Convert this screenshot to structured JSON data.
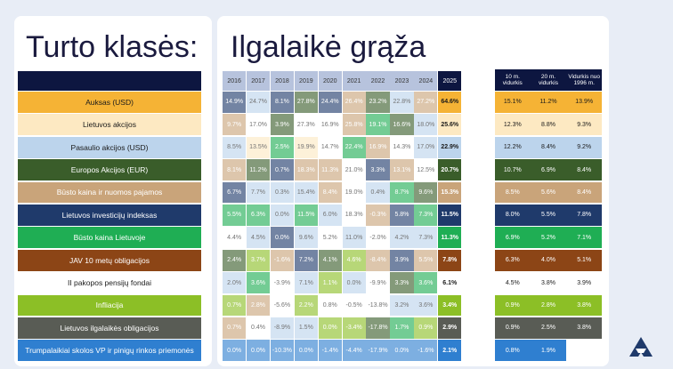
{
  "titles": {
    "left": "Turto klasės:",
    "right": "Ilgalaikė grąža"
  },
  "chart_data": {
    "type": "table",
    "years": [
      "2016",
      "2017",
      "2018",
      "2019",
      "2020",
      "2021",
      "2022",
      "2023",
      "2024",
      "2025"
    ],
    "summary_headers": [
      "10 m. vidurkis",
      "20 m. vidurkis",
      "Vidurkis nuo 1996 m."
    ],
    "assets": [
      {
        "name": "Auksas (USD)",
        "color": "#f5b335",
        "text": "#1a1a1a",
        "summary": [
          "15.1%",
          "11.2%",
          "13.9%"
        ]
      },
      {
        "name": "Lietuvos akcijos",
        "color": "#fde9c2",
        "text": "#1a1a1a",
        "summary": [
          "12.3%",
          "8.8%",
          "9.3%"
        ]
      },
      {
        "name": "Pasaulio akcijos (USD)",
        "color": "#bcd4ec",
        "text": "#1a1a1a",
        "summary": [
          "12.2%",
          "8.4%",
          "9.2%"
        ]
      },
      {
        "name": "Europos Akcijos (EUR)",
        "color": "#3a5d2a",
        "text": "#ffffff",
        "summary": [
          "10.7%",
          "6.9%",
          "8.4%"
        ]
      },
      {
        "name": "Būsto kaina ir nuomos pajamos",
        "color": "#c9a47a",
        "text": "#ffffff",
        "summary": [
          "8.5%",
          "5.6%",
          "8.4%"
        ]
      },
      {
        "name": "Lietuvos investicijų indeksas",
        "color": "#1f3a6b",
        "text": "#ffffff",
        "summary": [
          "8.0%",
          "5.5%",
          "7.8%"
        ]
      },
      {
        "name": "Būsto kaina Lietuvoje",
        "color": "#1fae54",
        "text": "#ffffff",
        "summary": [
          "6.9%",
          "5.2%",
          "7.1%"
        ]
      },
      {
        "name": "JAV 10 metų obligacijos",
        "color": "#8c4516",
        "text": "#ffffff",
        "summary": [
          "6.3%",
          "4.0%",
          "5.1%"
        ]
      },
      {
        "name": "II pakopos pensijų fondai",
        "color": "#ffffff",
        "text": "#1a1a1a",
        "summary": [
          "4.5%",
          "3.8%",
          "3.9%"
        ]
      },
      {
        "name": "Infliacija",
        "color": "#8cbf26",
        "text": "#ffffff",
        "summary": [
          "0.9%",
          "2.8%",
          "3.8%"
        ]
      },
      {
        "name": "Lietuvos ilgalaikės obligacijos",
        "color": "#595c55",
        "text": "#ffffff",
        "summary": [
          "0.9%",
          "2.5%",
          "3.8%"
        ]
      },
      {
        "name": "Trumpalaikiai skolos VP ir pinigų rinkos priemonės",
        "color": "#2f7fd0",
        "text": "#ffffff",
        "summary": [
          "0.8%",
          "1.9%",
          ""
        ]
      }
    ],
    "grid": [
      [
        {
          "v": "14.9%",
          "a": 5
        },
        {
          "v": "24.7%",
          "a": 2
        },
        {
          "v": "8.1%",
          "a": 5
        },
        {
          "v": "27.8%",
          "a": 3
        },
        {
          "v": "24.4%",
          "a": 5
        },
        {
          "v": "26.4%",
          "a": 4
        },
        {
          "v": "23.2%",
          "a": 3
        },
        {
          "v": "22.8%",
          "a": 2
        },
        {
          "v": "27.2%",
          "a": 4
        },
        {
          "v": "64.6%",
          "a": 0
        }
      ],
      [
        {
          "v": "9.7%",
          "a": 4
        },
        {
          "v": "17.0%",
          "a": 8
        },
        {
          "v": "3.9%",
          "a": 3
        },
        {
          "v": "27.3%",
          "a": 8
        },
        {
          "v": "16.9%",
          "a": 8
        },
        {
          "v": "25.8%",
          "a": 4
        },
        {
          "v": "19.1%",
          "a": 6
        },
        {
          "v": "16.6%",
          "a": 3
        },
        {
          "v": "18.0%",
          "a": 2
        },
        {
          "v": "25.6%",
          "a": 1
        }
      ],
      [
        {
          "v": "8.5%",
          "a": 2
        },
        {
          "v": "13.5%",
          "a": 1
        },
        {
          "v": "2.5%",
          "a": 6
        },
        {
          "v": "19.9%",
          "a": 1
        },
        {
          "v": "14.7%",
          "a": 8
        },
        {
          "v": "22.4%",
          "a": 6
        },
        {
          "v": "16.9%",
          "a": 4
        },
        {
          "v": "14.3%",
          "a": 8
        },
        {
          "v": "17.0%",
          "a": 2
        },
        {
          "v": "22.9%",
          "a": 2
        }
      ],
      [
        {
          "v": "8.1%",
          "a": 4
        },
        {
          "v": "11.2%",
          "a": 3
        },
        {
          "v": "0.7%",
          "a": 5
        },
        {
          "v": "18.3%",
          "a": 4
        },
        {
          "v": "11.3%",
          "a": 4
        },
        {
          "v": "21.0%",
          "a": 8
        },
        {
          "v": "3.3%",
          "a": 5
        },
        {
          "v": "13.1%",
          "a": 4
        },
        {
          "v": "12.5%",
          "a": 8
        },
        {
          "v": "20.7%",
          "a": 3
        }
      ],
      [
        {
          "v": "6.7%",
          "a": 5
        },
        {
          "v": "7.7%",
          "a": 2
        },
        {
          "v": "0.3%",
          "a": 2
        },
        {
          "v": "15.4%",
          "a": 2
        },
        {
          "v": "8.4%",
          "a": 4
        },
        {
          "v": "19.0%",
          "a": 8
        },
        {
          "v": "0.4%",
          "a": 2
        },
        {
          "v": "8.7%",
          "a": 6
        },
        {
          "v": "9.6%",
          "a": 3
        },
        {
          "v": "15.3%",
          "a": 4
        }
      ],
      [
        {
          "v": "5.5%",
          "a": 6
        },
        {
          "v": "6.3%",
          "a": 6
        },
        {
          "v": "0.0%",
          "a": 2
        },
        {
          "v": "11.5%",
          "a": 6
        },
        {
          "v": "6.0%",
          "a": 2
        },
        {
          "v": "18.3%",
          "a": 8
        },
        {
          "v": "-0.3%",
          "a": 4
        },
        {
          "v": "5.8%",
          "a": 5
        },
        {
          "v": "7.3%",
          "a": 6
        },
        {
          "v": "11.5%",
          "a": 5
        }
      ],
      [
        {
          "v": "4.4%",
          "a": 8
        },
        {
          "v": "4.5%",
          "a": 2
        },
        {
          "v": "0.0%",
          "a": 5
        },
        {
          "v": "9.6%",
          "a": 2
        },
        {
          "v": "5.2%",
          "a": 8
        },
        {
          "v": "11.0%",
          "a": 2
        },
        {
          "v": "-2.0%",
          "a": 8
        },
        {
          "v": "4.2%",
          "a": 2
        },
        {
          "v": "7.3%",
          "a": 2
        },
        {
          "v": "11.3%",
          "a": 6
        }
      ],
      [
        {
          "v": "2.4%",
          "a": 3
        },
        {
          "v": "3.7%",
          "a": 9
        },
        {
          "v": "-1.6%",
          "a": 4
        },
        {
          "v": "7.2%",
          "a": 5
        },
        {
          "v": "4.1%",
          "a": 3
        },
        {
          "v": "4.6%",
          "a": 9
        },
        {
          "v": "-8.4%",
          "a": 4
        },
        {
          "v": "3.9%",
          "a": 5
        },
        {
          "v": "5.5%",
          "a": 4
        },
        {
          "v": "7.8%",
          "a": 7
        }
      ],
      [
        {
          "v": "2.0%",
          "a": 2
        },
        {
          "v": "3.6%",
          "a": 6
        },
        {
          "v": "-3.9%",
          "a": 8
        },
        {
          "v": "7.1%",
          "a": 2
        },
        {
          "v": "1.1%",
          "a": 9
        },
        {
          "v": "0.0%",
          "a": 2
        },
        {
          "v": "-9.9%",
          "a": 8
        },
        {
          "v": "3.3%",
          "a": 3
        },
        {
          "v": "3.6%",
          "a": 6
        },
        {
          "v": "6.1%",
          "a": 8
        }
      ],
      [
        {
          "v": "0.7%",
          "a": 9
        },
        {
          "v": "2.8%",
          "a": 4
        },
        {
          "v": "-5.6%",
          "a": 8
        },
        {
          "v": "2.2%",
          "a": 9
        },
        {
          "v": "0.8%",
          "a": 8
        },
        {
          "v": "-0.5%",
          "a": 8
        },
        {
          "v": "-13.8%",
          "a": 8
        },
        {
          "v": "3.2%",
          "a": 2
        },
        {
          "v": "3.6%",
          "a": 2
        },
        {
          "v": "3.4%",
          "a": 9
        }
      ],
      [
        {
          "v": "0.7%",
          "a": 4
        },
        {
          "v": "0.4%",
          "a": 8
        },
        {
          "v": "-8.9%",
          "a": 2
        },
        {
          "v": "1.5%",
          "a": 2
        },
        {
          "v": "0.0%",
          "a": 9
        },
        {
          "v": "-3.4%",
          "a": 9
        },
        {
          "v": "-17.8%",
          "a": 3
        },
        {
          "v": "1.7%",
          "a": 6
        },
        {
          "v": "0.9%",
          "a": 9
        },
        {
          "v": "2.9%",
          "a": 10
        }
      ],
      [
        {
          "v": "0.0%",
          "a": 11
        },
        {
          "v": "0.0%",
          "a": 11
        },
        {
          "v": "-10.3%",
          "a": 11
        },
        {
          "v": "0.0%",
          "a": 11
        },
        {
          "v": "-1.4%",
          "a": 11
        },
        {
          "v": "-4.4%",
          "a": 11
        },
        {
          "v": "-17.9%",
          "a": 11
        },
        {
          "v": "0.0%",
          "a": 11
        },
        {
          "v": "-1.6%",
          "a": 11
        },
        {
          "v": "2.1%",
          "a": 11
        }
      ]
    ]
  }
}
